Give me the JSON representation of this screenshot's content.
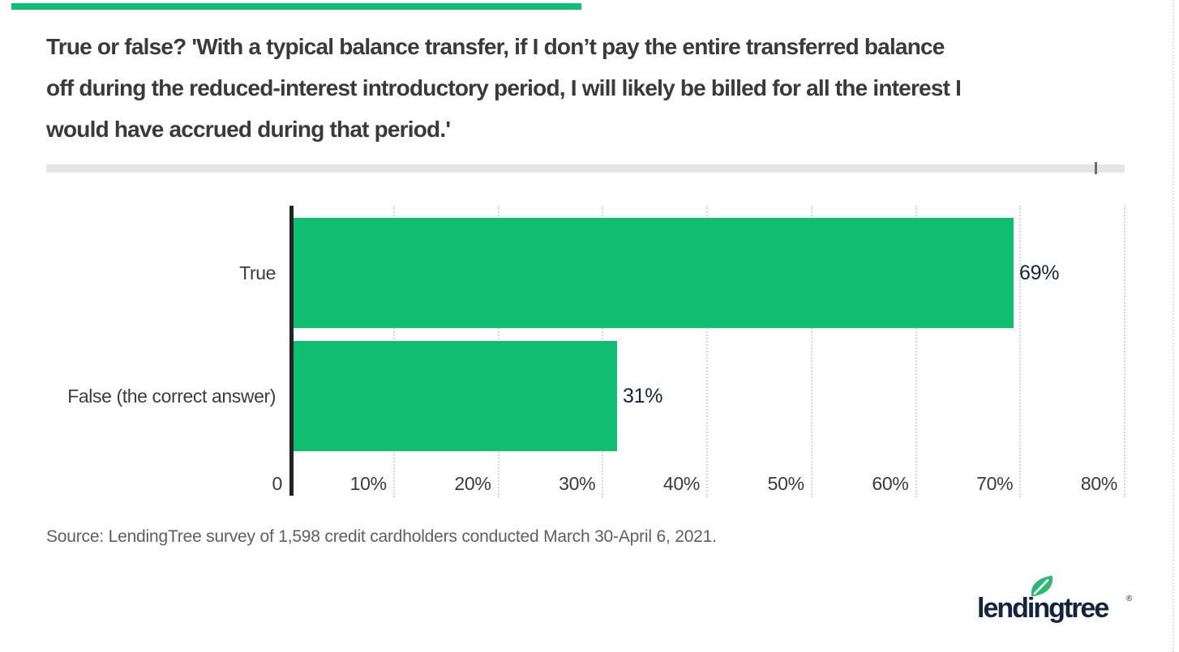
{
  "page": {
    "title_lines": [
      "True or false? 'With a typical balance transfer, if I don’t pay the entire transferred balance",
      "off during the reduced-interest introductory period, I will likely be billed for all the interest I",
      "would have accrued during that period.'"
    ],
    "source": "Source: LendingTree survey of 1,598 credit cardholders conducted March 30-April 6, 2021.",
    "logo": {
      "wordmark": "lendingtree",
      "registered_mark": "®",
      "leaf_icon": "leaf-icon"
    }
  },
  "colors": {
    "bar_green": "#0fbe70",
    "leaf_green": "#2eb873",
    "logo_navy": "#14243d",
    "title_gray": "#3a3a3a",
    "axis_black": "#242424",
    "gridline_gray": "#d7d7d7",
    "divider_gray": "#e5e5e5",
    "source_gray": "#5f5f5f"
  },
  "chart_data": {
    "type": "bar",
    "orientation": "horizontal",
    "title": "True or false? 'With a typical balance transfer, if I don’t pay the entire transferred balance off during the reduced-interest introductory period, I will likely be billed for all the interest I would have accrued during that period.'",
    "categories": [
      "True",
      "False (the correct answer)"
    ],
    "values": [
      69,
      31
    ],
    "value_labels": [
      "69%",
      "31%"
    ],
    "x_ticks": [
      0,
      10,
      20,
      30,
      40,
      50,
      60,
      70,
      80
    ],
    "x_tick_labels": [
      "0",
      "10%",
      "20%",
      "30%",
      "40%",
      "50%",
      "60%",
      "70%",
      "80%"
    ],
    "xlim": [
      0,
      80
    ],
    "xlabel": "",
    "ylabel": "",
    "grid": "vertical-dotted",
    "legend": "none"
  }
}
